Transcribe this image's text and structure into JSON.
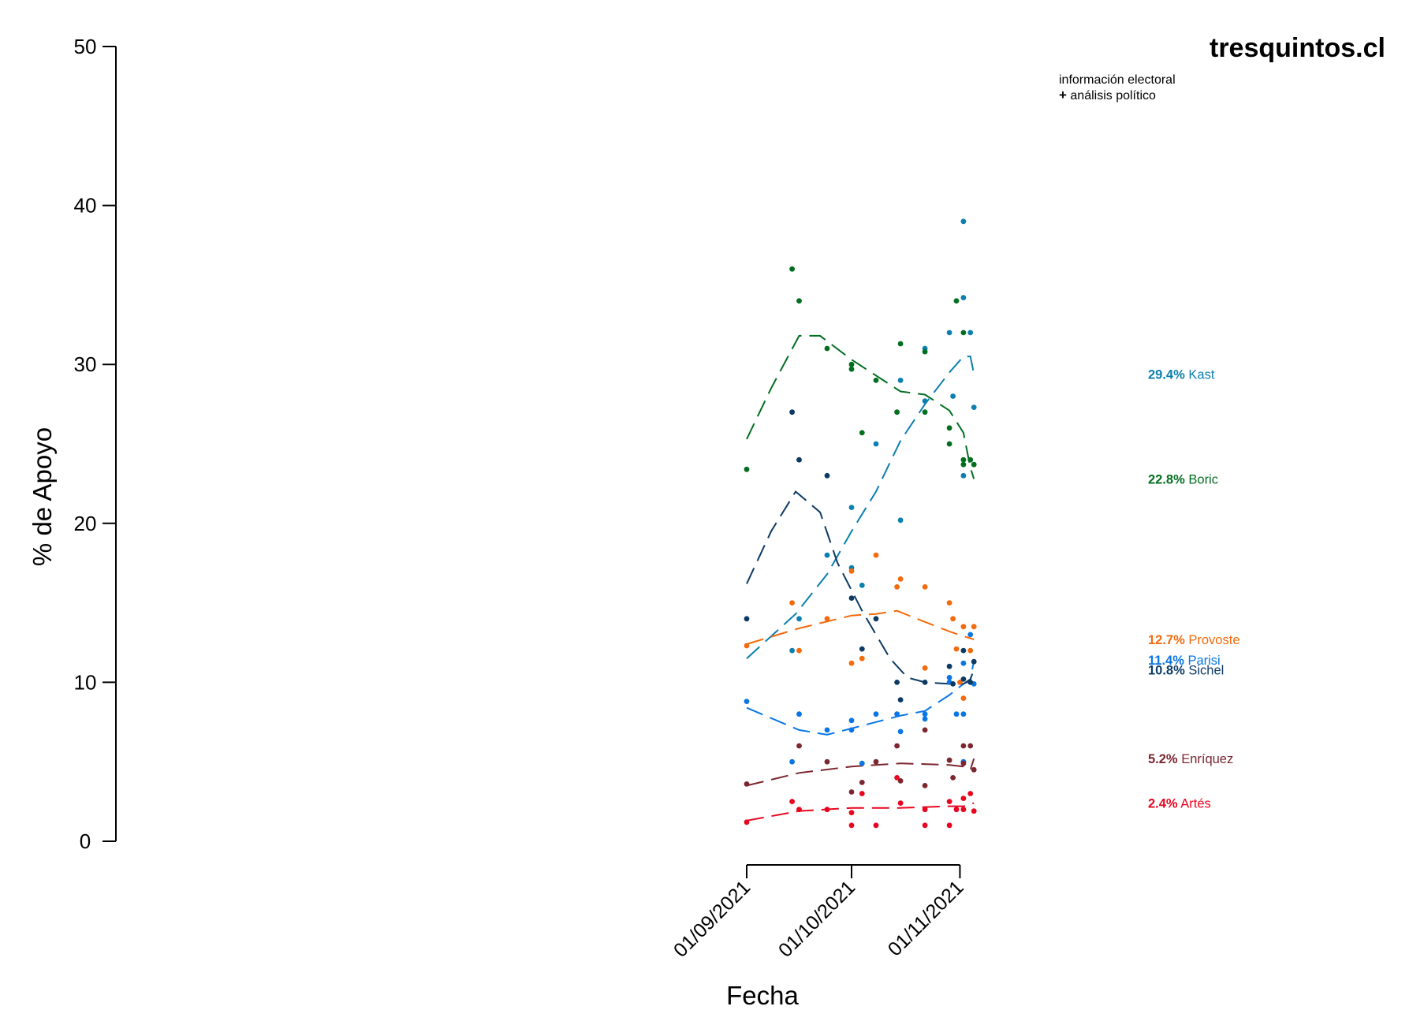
{
  "brand": {
    "name": "tresquintos.cl",
    "tagline1": "información electoral",
    "tagline2_symbol": "+",
    "tagline2_text": "análisis político"
  },
  "chart_data": {
    "type": "scatter",
    "xlabel": "Fecha",
    "ylabel": "% de Apoyo",
    "ylim": [
      0,
      50
    ],
    "yticks": [
      0,
      10,
      20,
      30,
      40,
      50
    ],
    "xticks": [
      {
        "date": "2021-09-01",
        "label": "01/09/2021"
      },
      {
        "date": "2021-10-01",
        "label": "01/10/2021"
      },
      {
        "date": "2021-11-01",
        "label": "01/11/2021"
      }
    ],
    "series": [
      {
        "name": "Kast",
        "color": "#0a7fb0",
        "final": "29.4%",
        "points": [
          [
            "2021-09-14",
            12
          ],
          [
            "2021-09-16",
            14
          ],
          [
            "2021-09-24",
            18
          ],
          [
            "2021-10-01",
            21
          ],
          [
            "2021-10-01",
            17.2
          ],
          [
            "2021-10-04",
            16.1
          ],
          [
            "2021-10-08",
            25
          ],
          [
            "2021-10-15",
            29
          ],
          [
            "2021-10-15",
            20.2
          ],
          [
            "2021-10-22",
            31
          ],
          [
            "2021-10-22",
            27.7
          ],
          [
            "2021-10-29",
            32
          ],
          [
            "2021-10-30",
            28
          ],
          [
            "2021-11-02",
            39
          ],
          [
            "2021-11-02",
            34.2
          ],
          [
            "2021-11-02",
            23
          ],
          [
            "2021-11-04",
            32
          ],
          [
            "2021-11-05",
            27.3
          ]
        ],
        "trend": [
          [
            "2021-09-01",
            11.5
          ],
          [
            "2021-09-15",
            14.3
          ],
          [
            "2021-09-24",
            16.8
          ],
          [
            "2021-10-01",
            19.5
          ],
          [
            "2021-10-08",
            22
          ],
          [
            "2021-10-15",
            25.2
          ],
          [
            "2021-10-22",
            27.5
          ],
          [
            "2021-10-29",
            29.5
          ],
          [
            "2021-11-02",
            30.5
          ],
          [
            "2021-11-04",
            30.5
          ],
          [
            "2021-11-05",
            29.4
          ]
        ]
      },
      {
        "name": "Boric",
        "color": "#006e1f",
        "final": "22.8%",
        "points": [
          [
            "2021-09-01",
            23.4
          ],
          [
            "2021-09-14",
            36
          ],
          [
            "2021-09-16",
            34
          ],
          [
            "2021-09-24",
            31
          ],
          [
            "2021-10-01",
            30
          ],
          [
            "2021-10-01",
            29.7
          ],
          [
            "2021-10-04",
            25.7
          ],
          [
            "2021-10-08",
            29
          ],
          [
            "2021-10-14",
            27
          ],
          [
            "2021-10-15",
            31.3
          ],
          [
            "2021-10-22",
            30.8
          ],
          [
            "2021-10-22",
            27
          ],
          [
            "2021-10-29",
            26
          ],
          [
            "2021-10-29",
            25
          ],
          [
            "2021-10-31",
            34
          ],
          [
            "2021-11-02",
            32
          ],
          [
            "2021-11-02",
            24
          ],
          [
            "2021-11-02",
            23.7
          ],
          [
            "2021-11-04",
            24
          ],
          [
            "2021-11-05",
            23.7
          ]
        ],
        "trend": [
          [
            "2021-09-01",
            25.3
          ],
          [
            "2021-09-08",
            28.5
          ],
          [
            "2021-09-16",
            31.8
          ],
          [
            "2021-09-22",
            31.8
          ],
          [
            "2021-10-01",
            30.3
          ],
          [
            "2021-10-08",
            29.3
          ],
          [
            "2021-10-15",
            28.3
          ],
          [
            "2021-10-22",
            28.1
          ],
          [
            "2021-10-29",
            27.1
          ],
          [
            "2021-11-02",
            25.7
          ],
          [
            "2021-11-04",
            23.5
          ],
          [
            "2021-11-05",
            22.8
          ]
        ]
      },
      {
        "name": "Provoste",
        "color": "#f46a0c",
        "final": "12.7%",
        "points": [
          [
            "2021-09-01",
            12.3
          ],
          [
            "2021-09-14",
            15
          ],
          [
            "2021-09-16",
            12
          ],
          [
            "2021-09-24",
            14
          ],
          [
            "2021-10-01",
            17
          ],
          [
            "2021-10-01",
            11.2
          ],
          [
            "2021-10-04",
            11.5
          ],
          [
            "2021-10-08",
            18
          ],
          [
            "2021-10-14",
            16
          ],
          [
            "2021-10-15",
            16.5
          ],
          [
            "2021-10-22",
            16
          ],
          [
            "2021-10-22",
            10.9
          ],
          [
            "2021-10-29",
            15
          ],
          [
            "2021-10-30",
            14
          ],
          [
            "2021-10-31",
            12.1
          ],
          [
            "2021-11-01",
            10
          ],
          [
            "2021-11-02",
            13.5
          ],
          [
            "2021-11-02",
            9
          ],
          [
            "2021-11-04",
            12
          ],
          [
            "2021-11-05",
            13.5
          ]
        ],
        "trend": [
          [
            "2021-09-01",
            12.4
          ],
          [
            "2021-09-16",
            13.4
          ],
          [
            "2021-10-01",
            14.2
          ],
          [
            "2021-10-08",
            14.3
          ],
          [
            "2021-10-14",
            14.5
          ],
          [
            "2021-10-22",
            13.8
          ],
          [
            "2021-10-29",
            13.2
          ],
          [
            "2021-11-02",
            12.9
          ],
          [
            "2021-11-05",
            12.7
          ]
        ]
      },
      {
        "name": "Parisi",
        "color": "#0a76e6",
        "final": "11.4%",
        "points": [
          [
            "2021-09-01",
            8.8
          ],
          [
            "2021-09-14",
            5
          ],
          [
            "2021-09-16",
            8
          ],
          [
            "2021-09-24",
            7
          ],
          [
            "2021-10-01",
            7
          ],
          [
            "2021-10-01",
            7.6
          ],
          [
            "2021-10-04",
            4.9
          ],
          [
            "2021-10-08",
            8
          ],
          [
            "2021-10-14",
            8
          ],
          [
            "2021-10-15",
            6.9
          ],
          [
            "2021-10-22",
            8
          ],
          [
            "2021-10-22",
            7.7
          ],
          [
            "2021-10-29",
            10
          ],
          [
            "2021-10-29",
            10.3
          ],
          [
            "2021-10-31",
            8
          ],
          [
            "2021-11-02",
            8
          ],
          [
            "2021-11-02",
            11.2
          ],
          [
            "2021-11-02",
            5
          ],
          [
            "2021-11-04",
            13
          ],
          [
            "2021-11-05",
            9.9
          ]
        ],
        "trend": [
          [
            "2021-09-01",
            8.4
          ],
          [
            "2021-09-16",
            7
          ],
          [
            "2021-09-24",
            6.7
          ],
          [
            "2021-10-01",
            7.1
          ],
          [
            "2021-10-08",
            7.5
          ],
          [
            "2021-10-15",
            7.9
          ],
          [
            "2021-10-22",
            8.2
          ],
          [
            "2021-10-29",
            9.2
          ],
          [
            "2021-11-02",
            9.9
          ],
          [
            "2021-11-04",
            10.1
          ],
          [
            "2021-11-05",
            11.4
          ]
        ]
      },
      {
        "name": "Sichel",
        "color": "#0c3a63",
        "final": "10.8%",
        "points": [
          [
            "2021-09-01",
            14
          ],
          [
            "2021-09-14",
            27
          ],
          [
            "2021-09-16",
            24
          ],
          [
            "2021-09-24",
            23
          ],
          [
            "2021-10-01",
            15.3
          ],
          [
            "2021-10-04",
            12.1
          ],
          [
            "2021-10-08",
            14
          ],
          [
            "2021-10-14",
            10
          ],
          [
            "2021-10-15",
            8.9
          ],
          [
            "2021-10-22",
            10
          ],
          [
            "2021-10-29",
            11
          ],
          [
            "2021-10-30",
            9.9
          ],
          [
            "2021-11-02",
            10.2
          ],
          [
            "2021-11-02",
            12
          ],
          [
            "2021-11-04",
            10
          ],
          [
            "2021-11-05",
            11.3
          ]
        ],
        "trend": [
          [
            "2021-09-01",
            16.2
          ],
          [
            "2021-09-08",
            19.5
          ],
          [
            "2021-09-15",
            22
          ],
          [
            "2021-09-22",
            20.7
          ],
          [
            "2021-09-27",
            17.5
          ],
          [
            "2021-10-04",
            14.5
          ],
          [
            "2021-10-12",
            11.5
          ],
          [
            "2021-10-17",
            10.3
          ],
          [
            "2021-10-22",
            10
          ],
          [
            "2021-10-29",
            9.9
          ],
          [
            "2021-11-02",
            9.9
          ],
          [
            "2021-11-04",
            10.2
          ],
          [
            "2021-11-05",
            10.8
          ]
        ]
      },
      {
        "name": "Enríquez",
        "color": "#7c2630",
        "final": "5.2%",
        "points": [
          [
            "2021-09-01",
            3.6
          ],
          [
            "2021-09-16",
            6
          ],
          [
            "2021-09-24",
            5
          ],
          [
            "2021-10-01",
            3.1
          ],
          [
            "2021-10-04",
            3.7
          ],
          [
            "2021-10-08",
            5
          ],
          [
            "2021-10-14",
            6
          ],
          [
            "2021-10-15",
            3.8
          ],
          [
            "2021-10-22",
            7
          ],
          [
            "2021-10-22",
            3.5
          ],
          [
            "2021-10-29",
            5.1
          ],
          [
            "2021-10-30",
            4
          ],
          [
            "2021-11-02",
            6
          ],
          [
            "2021-11-02",
            4.9
          ],
          [
            "2021-11-04",
            6
          ],
          [
            "2021-11-05",
            4.5
          ]
        ],
        "trend": [
          [
            "2021-09-01",
            3.5
          ],
          [
            "2021-09-16",
            4.3
          ],
          [
            "2021-10-01",
            4.7
          ],
          [
            "2021-10-15",
            4.9
          ],
          [
            "2021-10-29",
            4.8
          ],
          [
            "2021-11-02",
            4.7
          ],
          [
            "2021-11-04",
            4.5
          ],
          [
            "2021-11-05",
            5.2
          ]
        ]
      },
      {
        "name": "Artés",
        "color": "#e8051f",
        "final": "2.4%",
        "points": [
          [
            "2021-09-01",
            1.2
          ],
          [
            "2021-09-14",
            2.5
          ],
          [
            "2021-09-16",
            2
          ],
          [
            "2021-09-24",
            2
          ],
          [
            "2021-10-01",
            1.8
          ],
          [
            "2021-10-01",
            1
          ],
          [
            "2021-10-04",
            3
          ],
          [
            "2021-10-08",
            1
          ],
          [
            "2021-10-14",
            4
          ],
          [
            "2021-10-15",
            2.4
          ],
          [
            "2021-10-22",
            1
          ],
          [
            "2021-10-22",
            2
          ],
          [
            "2021-10-29",
            2.5
          ],
          [
            "2021-10-29",
            1
          ],
          [
            "2021-10-31",
            2
          ],
          [
            "2021-11-02",
            2
          ],
          [
            "2021-11-02",
            2.7
          ],
          [
            "2021-11-04",
            3
          ],
          [
            "2021-11-05",
            1.9
          ]
        ],
        "trend": [
          [
            "2021-09-01",
            1.3
          ],
          [
            "2021-09-16",
            1.9
          ],
          [
            "2021-10-01",
            2.1
          ],
          [
            "2021-10-15",
            2.1
          ],
          [
            "2021-10-29",
            2.2
          ],
          [
            "2021-11-02",
            2.2
          ],
          [
            "2021-11-05",
            2.4
          ]
        ]
      }
    ]
  }
}
